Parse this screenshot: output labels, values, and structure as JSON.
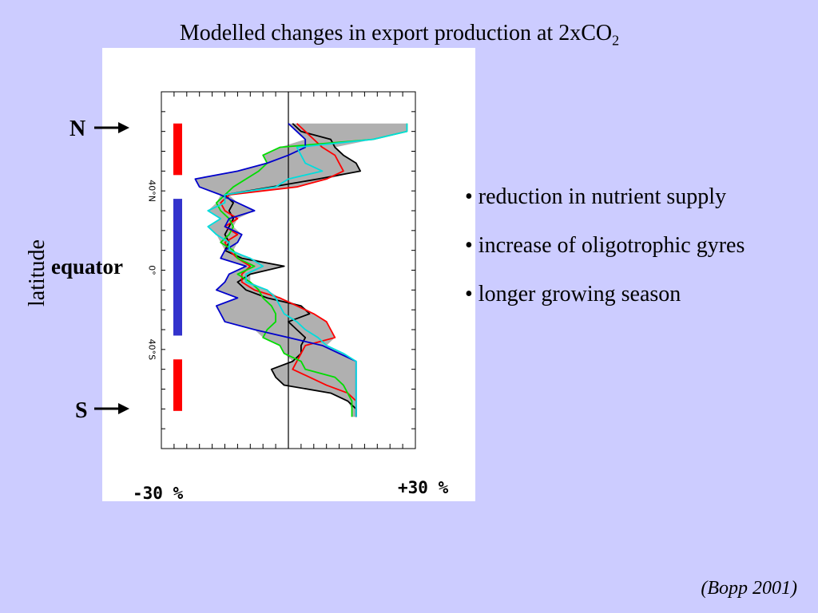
{
  "slide": {
    "title": "Modelled changes in export production at 2xCO",
    "title_subscript": "2",
    "source": "(Bopp 2001)",
    "bullets": [
      "• reduction in nutrient supply",
      "• increase of oligotrophic gyres",
      "• longer growing season"
    ],
    "annotations": {
      "north": "N",
      "south": "S",
      "equator": "equator",
      "ylabel": "latitude",
      "xmin": "-30 %",
      "xmax": "+30 %"
    },
    "colors": {
      "background": "#ccccff",
      "region_high_latitude": "#ff0000",
      "region_tropics": "#3333cc",
      "envelope_fill": "#b0b0b0"
    }
  },
  "chart_data": {
    "type": "line",
    "title": "Modelled changes in export production at 2xCO2",
    "xlabel": "",
    "ylabel": "latitude",
    "xlim": [
      -30,
      30
    ],
    "ylim": [
      -90,
      90
    ],
    "y_ticks": [
      {
        "value": 40,
        "label": "40°N"
      },
      {
        "value": 0,
        "label": "0°"
      },
      {
        "value": -40,
        "label": "40°S"
      }
    ],
    "x_tick_labels": [
      "-30 %",
      "+30 %"
    ],
    "zero_line": 0,
    "regions": [
      {
        "color": "#ff0000",
        "lat_from": 74,
        "lat_to": 48
      },
      {
        "color": "#3333cc",
        "lat_from": 36,
        "lat_to": -33
      },
      {
        "color": "#ff0000",
        "lat_from": -45,
        "lat_to": -71
      }
    ],
    "lat": [
      74,
      70,
      66,
      62,
      58,
      54,
      50,
      46,
      42,
      38,
      34,
      30,
      26,
      22,
      18,
      14,
      10,
      6,
      2,
      -2,
      -6,
      -10,
      -14,
      -18,
      -22,
      -26,
      -30,
      -34,
      -38,
      -42,
      -46,
      -50,
      -54,
      -58,
      -62,
      -66,
      -70,
      -74
    ],
    "series": [
      {
        "color": "#000000",
        "values": [
          1,
          3,
          10,
          11,
          13,
          16,
          17,
          7,
          -4,
          -15,
          -13,
          -14,
          -13,
          -14,
          -15,
          -14,
          -15,
          -11,
          -1,
          -9,
          -12,
          -10,
          -5,
          3,
          5,
          0,
          2,
          4,
          3,
          3,
          1,
          -4,
          -3,
          -1,
          10,
          14,
          16,
          16
        ]
      },
      {
        "color": "#ff0000",
        "values": [
          2,
          4,
          6,
          8,
          11,
          12,
          13,
          9,
          2,
          -14,
          -16,
          -15,
          -12,
          -15,
          -12,
          -15,
          -14,
          -12,
          -9,
          -11,
          -11,
          -8,
          -2,
          2,
          6,
          9,
          10,
          11,
          4,
          3,
          2,
          1,
          5,
          9,
          14,
          16,
          16,
          16
        ]
      },
      {
        "color": "#00dd00",
        "values": [
          28,
          28,
          20,
          -2,
          -6,
          -5,
          -7,
          -10,
          -13,
          -15,
          -17,
          -16,
          -14,
          -13,
          -14,
          -16,
          -13,
          -12,
          -8,
          -12,
          -9,
          -7,
          -6,
          -4,
          -3,
          -3,
          -5,
          -6,
          -2,
          -1,
          3,
          4,
          11,
          13,
          14,
          15,
          15,
          15
        ]
      },
      {
        "color": "#0000cc",
        "values": [
          0,
          2,
          4,
          4,
          0,
          -5,
          -12,
          -22,
          -21,
          -16,
          -12,
          -8,
          -14,
          -15,
          -11,
          -12,
          -15,
          -16,
          -10,
          -14,
          -15,
          -17,
          -12,
          -17,
          -16,
          -15,
          -8,
          0,
          8,
          12,
          16,
          16,
          16,
          16,
          16,
          16,
          16,
          16
        ]
      },
      {
        "color": "#00dddd",
        "values": [
          28,
          28,
          20,
          2,
          3,
          4,
          8,
          0,
          -3,
          -15,
          -15,
          -19,
          -16,
          -19,
          -17,
          -14,
          -14,
          -9,
          -6,
          -10,
          -10,
          -5,
          -3,
          -2,
          -1,
          2,
          4,
          7,
          9,
          13,
          16,
          16,
          16,
          16,
          16,
          16,
          16,
          16
        ]
      }
    ]
  }
}
